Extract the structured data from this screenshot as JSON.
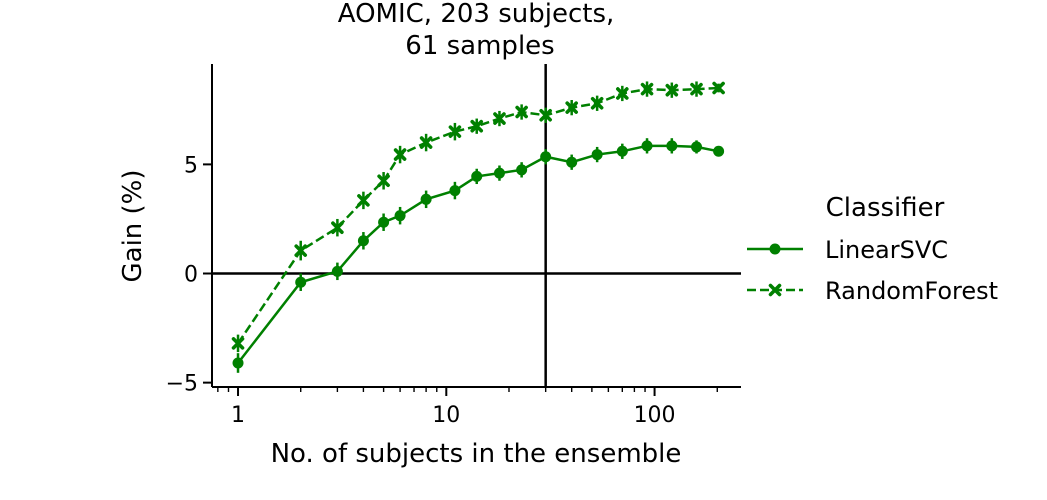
{
  "chart_data": {
    "type": "line",
    "title_lines": [
      "AOMIC, 203 subjects,",
      "61 samples"
    ],
    "xlabel": "No. of subjects in the ensemble",
    "ylabel": "Gain (%)",
    "xscale": "log",
    "xlim": [
      0.75,
      260
    ],
    "ylim": [
      -5.2,
      9.6
    ],
    "xticks": [
      {
        "v": 1,
        "label": "1"
      },
      {
        "v": 10,
        "label": "10"
      },
      {
        "v": 100,
        "label": "100"
      }
    ],
    "yticks": [
      {
        "v": -5,
        "label": "−5"
      },
      {
        "v": 0,
        "label": "0"
      },
      {
        "v": 5,
        "label": "5"
      }
    ],
    "reference_lines": {
      "horizontal_y": 0,
      "vertical_x": 30
    },
    "grid": false,
    "legend": {
      "title": "Classifier",
      "placement": "right"
    },
    "color": "#008000",
    "series": [
      {
        "name": "LinearSVC",
        "marker": "circle",
        "linestyle": "solid",
        "x": [
          1,
          2,
          3,
          4,
          5,
          6,
          8,
          11,
          14,
          18,
          23,
          30,
          40,
          53,
          70,
          92,
          121,
          159,
          203
        ],
        "y": [
          -4.1,
          -0.4,
          0.1,
          1.5,
          2.35,
          2.65,
          3.4,
          3.8,
          4.45,
          4.6,
          4.75,
          5.35,
          5.1,
          5.45,
          5.6,
          5.85,
          5.85,
          5.8,
          5.6
        ],
        "err": [
          0.45,
          0.4,
          0.4,
          0.4,
          0.4,
          0.4,
          0.4,
          0.4,
          0.35,
          0.35,
          0.35,
          0.35,
          0.35,
          0.35,
          0.35,
          0.35,
          0.35,
          0.3,
          0.15
        ]
      },
      {
        "name": "RandomForest",
        "marker": "x",
        "linestyle": "dashed",
        "x": [
          1,
          2,
          3,
          4,
          5,
          6,
          8,
          11,
          14,
          18,
          23,
          30,
          40,
          53,
          70,
          92,
          121,
          159,
          203
        ],
        "y": [
          -3.2,
          1.05,
          2.1,
          3.35,
          4.25,
          5.45,
          6.0,
          6.5,
          6.75,
          7.1,
          7.4,
          7.25,
          7.6,
          7.8,
          8.25,
          8.45,
          8.4,
          8.45,
          8.5
        ],
        "err": [
          0.4,
          0.45,
          0.4,
          0.4,
          0.4,
          0.4,
          0.4,
          0.4,
          0.35,
          0.35,
          0.35,
          0.35,
          0.35,
          0.35,
          0.35,
          0.35,
          0.35,
          0.35,
          0.2
        ]
      }
    ]
  }
}
